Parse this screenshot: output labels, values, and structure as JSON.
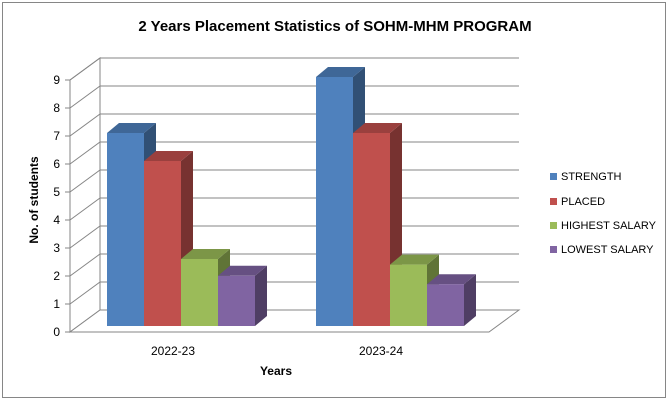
{
  "chart_data": {
    "type": "bar",
    "title": "2 Years Placement Statistics of SOHM-MHM PROGRAM",
    "xlabel": "Years",
    "ylabel": "No. of students",
    "categories": [
      "2022-23",
      "2023-24"
    ],
    "ylim": [
      0,
      9
    ],
    "yticks": [
      "0",
      "1",
      "2",
      "3",
      "4",
      "5",
      "6",
      "7",
      "8",
      "9"
    ],
    "grid": true,
    "legend_position": "right",
    "series": [
      {
        "name": "STRENGTH",
        "values": [
          7,
          9
        ],
        "color": "#4F81BD"
      },
      {
        "name": "PLACED",
        "values": [
          6,
          7
        ],
        "color": "#C0504D"
      },
      {
        "name": "HIGHEST SALARY",
        "values": [
          2.5,
          2.3
        ],
        "color": "#9BBB59"
      },
      {
        "name": "LOWEST SALARY",
        "values": [
          1.9,
          1.6
        ],
        "color": "#8064A2"
      }
    ]
  }
}
